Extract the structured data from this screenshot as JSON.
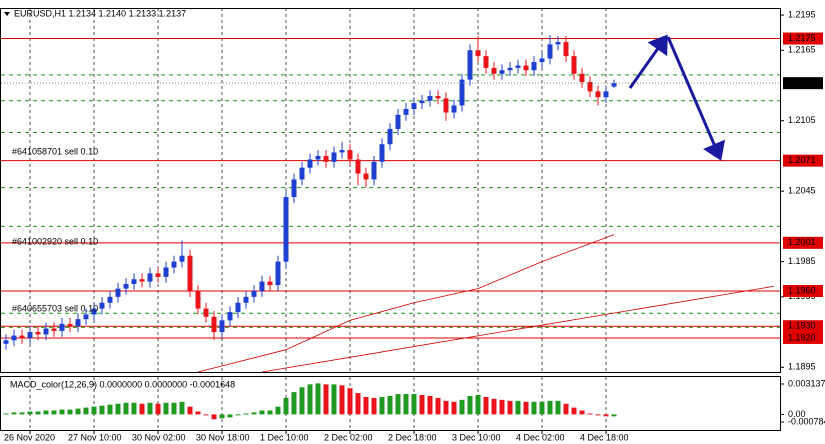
{
  "chart_data": [
    {
      "type": "candlestick",
      "title": "EURUSD,H1  1.2134 1.2140 1.2133 1.2137",
      "xlim": [
        -0.75,
        96.75
      ],
      "xticks": [
        {
          "value": 3,
          "label": "26 Nov 2020"
        },
        {
          "value": 11,
          "label": "27 Nov 10:00"
        },
        {
          "value": 19,
          "label": "30 Nov 02:00"
        },
        {
          "value": 27,
          "label": "30 Nov 18:00"
        },
        {
          "value": 35,
          "label": "1 Dec 10:00"
        },
        {
          "value": 43,
          "label": "2 Dec 02:00"
        },
        {
          "value": 51,
          "label": "2 Dec 18:00"
        },
        {
          "value": 59,
          "label": "3 Dec 10:00"
        },
        {
          "value": 67,
          "label": "4 Dec 02:00"
        },
        {
          "value": 75,
          "label": "4 Dec 18:00"
        }
      ],
      "ylim": [
        1.1891,
        1.2201
      ],
      "yticks": [
        1.2195,
        1.2165,
        1.2105,
        1.2045,
        1.1985,
        1.1955,
        1.1895
      ],
      "grid": true,
      "up_color": "#1f3fd1",
      "down_color": "#e8141a",
      "open": [
        1.1915,
        1.1918,
        1.1922,
        1.192,
        1.1925,
        1.1923,
        1.1928,
        1.1926,
        1.1932,
        1.193,
        1.1936,
        1.194,
        1.1945,
        1.195,
        1.1955,
        1.1962,
        1.1966,
        1.197,
        1.1968,
        1.1975,
        1.1972,
        1.198,
        1.1985,
        1.199,
        1.196,
        1.1945,
        1.1938,
        1.1925,
        1.1935,
        1.1942,
        1.195,
        1.1955,
        1.196,
        1.1968,
        1.1965,
        1.1985,
        1.204,
        1.2055,
        1.2065,
        1.2072,
        1.2075,
        1.207,
        1.2078,
        1.208,
        1.2072,
        1.206,
        1.2055,
        1.207,
        1.2085,
        1.2098,
        1.211,
        1.2115,
        1.212,
        1.2122,
        1.2126,
        1.2124,
        1.2112,
        1.2118,
        1.214,
        1.2165,
        1.216,
        1.215,
        1.2145,
        1.2148,
        1.215,
        1.2152,
        1.2148,
        1.2155,
        1.2158,
        1.217,
        1.2172,
        1.216,
        1.2145,
        1.2138,
        1.213,
        1.2125,
        1.2134
      ],
      "high": [
        1.1923,
        1.1927,
        1.1927,
        1.193,
        1.193,
        1.1933,
        1.1933,
        1.1937,
        1.1937,
        1.1941,
        1.1945,
        1.195,
        1.1955,
        1.196,
        1.1967,
        1.1971,
        1.1975,
        1.1975,
        1.198,
        1.198,
        1.1985,
        1.199,
        1.2003,
        1.1995,
        1.1965,
        1.195,
        1.1943,
        1.194,
        1.1947,
        1.1955,
        1.196,
        1.1965,
        1.1973,
        1.1973,
        1.199,
        1.2045,
        1.206,
        1.207,
        1.2077,
        1.208,
        1.208,
        1.2083,
        1.2087,
        1.2085,
        1.2077,
        1.2065,
        1.2075,
        1.209,
        1.2103,
        1.2115,
        1.212,
        1.2125,
        1.2127,
        1.2131,
        1.2131,
        1.2129,
        1.2123,
        1.2145,
        1.217,
        1.2177,
        1.2165,
        1.2155,
        1.2153,
        1.2155,
        1.2157,
        1.2157,
        1.216,
        1.2163,
        1.2178,
        1.2177,
        1.2177,
        1.2165,
        1.215,
        1.2143,
        1.2135,
        1.2135,
        1.214
      ],
      "low": [
        1.191,
        1.1913,
        1.1915,
        1.1915,
        1.1918,
        1.1918,
        1.1921,
        1.1921,
        1.1925,
        1.1925,
        1.1931,
        1.1935,
        1.194,
        1.1945,
        1.195,
        1.1957,
        1.1961,
        1.1963,
        1.1963,
        1.1967,
        1.1967,
        1.1975,
        1.198,
        1.1955,
        1.194,
        1.1933,
        1.1918,
        1.192,
        1.193,
        1.1937,
        1.1945,
        1.195,
        1.1955,
        1.196,
        1.196,
        1.198,
        1.2035,
        1.205,
        1.206,
        1.2067,
        1.2065,
        1.2065,
        1.2073,
        1.2067,
        1.205,
        1.2048,
        1.205,
        1.2065,
        1.208,
        1.2093,
        1.2105,
        1.211,
        1.2115,
        1.2117,
        1.2119,
        1.2105,
        1.2107,
        1.2113,
        1.2135,
        1.2155,
        1.2145,
        1.214,
        1.214,
        1.2143,
        1.2145,
        1.2143,
        1.2143,
        1.215,
        1.2153,
        1.2165,
        1.2155,
        1.214,
        1.2133,
        1.2125,
        1.2118,
        1.212,
        1.2133
      ],
      "close": [
        1.1918,
        1.1922,
        1.192,
        1.1925,
        1.1923,
        1.1928,
        1.1926,
        1.1932,
        1.193,
        1.1936,
        1.194,
        1.1945,
        1.195,
        1.1955,
        1.1962,
        1.1966,
        1.197,
        1.1968,
        1.1975,
        1.1972,
        1.198,
        1.1985,
        1.199,
        1.196,
        1.1945,
        1.1938,
        1.1925,
        1.1935,
        1.1942,
        1.195,
        1.1955,
        1.196,
        1.1968,
        1.1965,
        1.1985,
        1.204,
        1.2055,
        1.2065,
        1.2072,
        1.2075,
        1.207,
        1.2078,
        1.208,
        1.2072,
        1.206,
        1.2055,
        1.207,
        1.2085,
        1.2098,
        1.211,
        1.2115,
        1.212,
        1.2122,
        1.2126,
        1.2124,
        1.2112,
        1.2118,
        1.214,
        1.2165,
        1.216,
        1.215,
        1.2145,
        1.2148,
        1.215,
        1.2152,
        1.2148,
        1.2155,
        1.2158,
        1.217,
        1.2172,
        1.216,
        1.2145,
        1.2138,
        1.213,
        1.2125,
        1.213,
        1.2137
      ],
      "last_price": 1.2137,
      "order_color": "#e00000",
      "order_levels": [
        1.2175,
        1.2071,
        1.2001,
        {
          "value": 1.196,
          "label": "1.1960"
        },
        {
          "value": 1.193,
          "label": "1.1930"
        },
        {
          "value": 1.192,
          "label": "1.1920"
        }
      ],
      "stop_color": "#1f9a1f",
      "stop_levels": [
        1.2144,
        1.2122,
        1.2095,
        1.2048,
        1.2015,
        1.1941,
        1.1929
      ],
      "annotations": [
        "#641058701 sell 0.10",
        "#641002920 sell 0.10",
        "#640655703 sell 0.10"
      ],
      "moving_averages": [
        {
          "color": "#d00000",
          "x": [
            24,
            35,
            43,
            51,
            59,
            67,
            76
          ],
          "values": [
            1.1891,
            1.191,
            1.1935,
            1.195,
            1.1962,
            1.1985,
            1.2008
          ]
        },
        {
          "color": "#d00000",
          "x": [
            32,
            96
          ],
          "values": [
            1.1891,
            1.1964
          ]
        }
      ]
    },
    {
      "type": "bar",
      "title": "MACD_color(12,26,9) 0.0000000 0.0000000 -0.0001648",
      "xlim": [
        -0.75,
        96.75
      ],
      "ylim": [
        -0.000784,
        0.003137
      ],
      "yticks": [
        0.003137,
        {
          "value": 0,
          "label": "0.00"
        },
        -0.000784
      ],
      "up_color": "#1e9a1e",
      "down_color": "#e8141a",
      "values": [
        0.0001,
        0.0002,
        0.0002,
        0.0003,
        0.0003,
        0.0004,
        0.0004,
        0.0005,
        0.0005,
        0.0006,
        0.0007,
        0.0008,
        0.0009,
        0.001,
        0.0011,
        0.0012,
        0.0012,
        0.0011,
        0.0012,
        0.0011,
        0.0012,
        0.0012,
        0.0013,
        0.0008,
        0.0003,
        -0.0001,
        -0.0005,
        -0.0004,
        -0.0003,
        -0.0001,
        0.0001,
        0.0002,
        0.0004,
        0.0004,
        0.0008,
        0.0017,
        0.0023,
        0.0028,
        0.0031,
        0.0032,
        0.0031,
        0.0031,
        0.003,
        0.0027,
        0.0022,
        0.0018,
        0.0017,
        0.0018,
        0.0019,
        0.0021,
        0.0021,
        0.0021,
        0.002,
        0.0019,
        0.0017,
        0.0014,
        0.0013,
        0.0015,
        0.0019,
        0.002,
        0.0018,
        0.0016,
        0.0015,
        0.0014,
        0.0014,
        0.0013,
        0.0013,
        0.0013,
        0.0014,
        0.0014,
        0.0011,
        0.0007,
        0.0004,
        0.0001,
        -0.0001,
        -0.0002,
        -0.0002
      ]
    }
  ]
}
